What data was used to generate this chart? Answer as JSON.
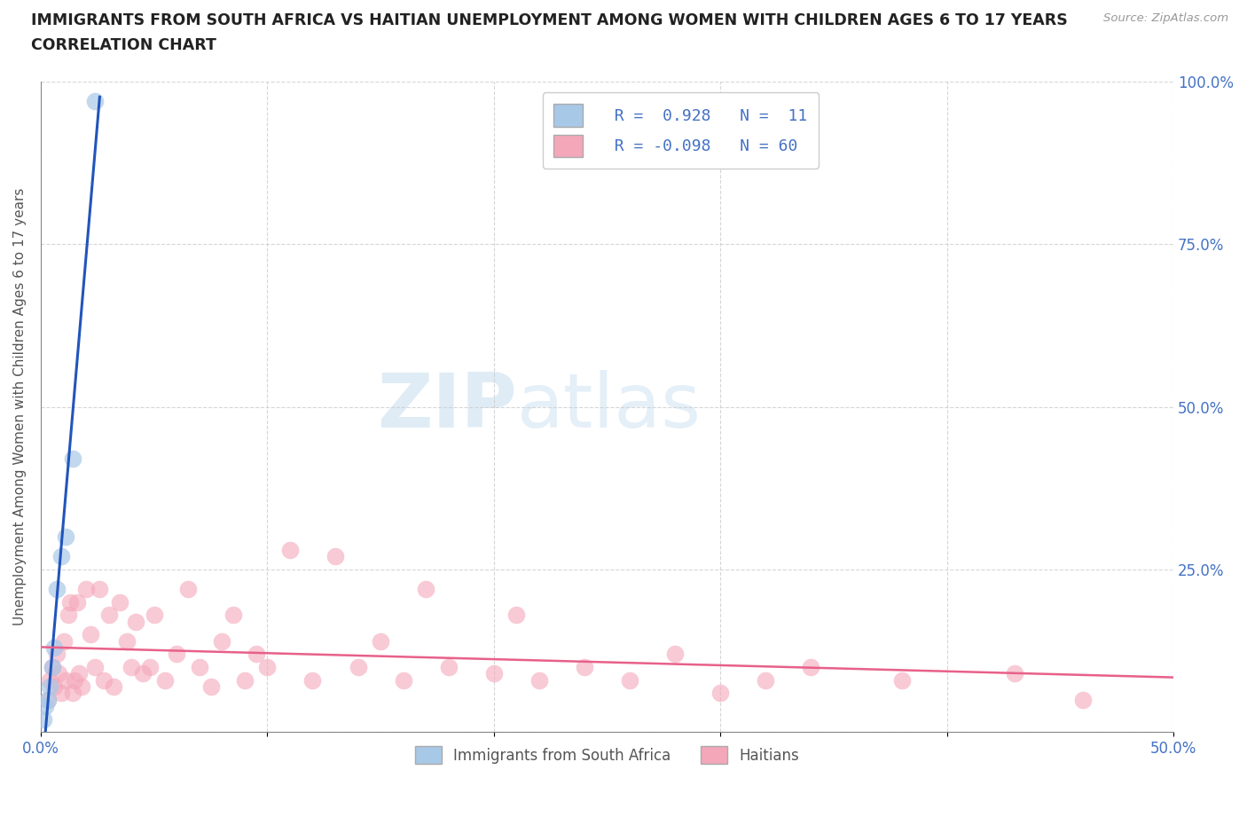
{
  "title": "IMMIGRANTS FROM SOUTH AFRICA VS HAITIAN UNEMPLOYMENT AMONG WOMEN WITH CHILDREN AGES 6 TO 17 YEARS",
  "subtitle": "CORRELATION CHART",
  "source": "Source: ZipAtlas.com",
  "ylabel": "Unemployment Among Women with Children Ages 6 to 17 years",
  "xlim": [
    0.0,
    0.5
  ],
  "ylim": [
    0.0,
    1.0
  ],
  "xticks": [
    0.0,
    0.1,
    0.2,
    0.3,
    0.4,
    0.5
  ],
  "xticklabels": [
    "0.0%",
    "",
    "",
    "",
    "",
    "50.0%"
  ],
  "yticks": [
    0.0,
    0.25,
    0.5,
    0.75,
    1.0
  ],
  "yticklabels_right": [
    "",
    "25.0%",
    "50.0%",
    "75.0%",
    "100.0%"
  ],
  "background_color": "#ffffff",
  "watermark_zip": "ZIP",
  "watermark_atlas": "atlas",
  "legend_line1": "R =  0.928   N =  11",
  "legend_line2": "R = -0.098   N = 60",
  "blue_scatter_color": "#a8c8e8",
  "pink_scatter_color": "#f4a7b9",
  "blue_line_color": "#2255bb",
  "pink_line_color": "#e8608a",
  "title_color": "#222222",
  "axis_label_color": "#555555",
  "tick_color": "#4472c4",
  "grid_color": "#cccccc",
  "south_africa_x": [
    0.001,
    0.002,
    0.003,
    0.004,
    0.005,
    0.006,
    0.007,
    0.009,
    0.011,
    0.014,
    0.024
  ],
  "south_africa_y": [
    0.02,
    0.04,
    0.05,
    0.07,
    0.1,
    0.13,
    0.22,
    0.27,
    0.3,
    0.42,
    0.97
  ],
  "haitian_x": [
    0.003,
    0.004,
    0.005,
    0.006,
    0.007,
    0.008,
    0.009,
    0.01,
    0.011,
    0.012,
    0.013,
    0.014,
    0.015,
    0.016,
    0.017,
    0.018,
    0.02,
    0.022,
    0.024,
    0.026,
    0.028,
    0.03,
    0.032,
    0.035,
    0.038,
    0.04,
    0.042,
    0.045,
    0.048,
    0.05,
    0.055,
    0.06,
    0.065,
    0.07,
    0.075,
    0.08,
    0.085,
    0.09,
    0.095,
    0.1,
    0.11,
    0.12,
    0.13,
    0.14,
    0.15,
    0.16,
    0.17,
    0.18,
    0.2,
    0.21,
    0.22,
    0.24,
    0.26,
    0.28,
    0.3,
    0.32,
    0.34,
    0.38,
    0.43,
    0.46
  ],
  "haitian_y": [
    0.05,
    0.08,
    0.1,
    0.07,
    0.12,
    0.09,
    0.06,
    0.14,
    0.08,
    0.18,
    0.2,
    0.06,
    0.08,
    0.2,
    0.09,
    0.07,
    0.22,
    0.15,
    0.1,
    0.22,
    0.08,
    0.18,
    0.07,
    0.2,
    0.14,
    0.1,
    0.17,
    0.09,
    0.1,
    0.18,
    0.08,
    0.12,
    0.22,
    0.1,
    0.07,
    0.14,
    0.18,
    0.08,
    0.12,
    0.1,
    0.28,
    0.08,
    0.27,
    0.1,
    0.14,
    0.08,
    0.22,
    0.1,
    0.09,
    0.18,
    0.08,
    0.1,
    0.08,
    0.12,
    0.06,
    0.08,
    0.1,
    0.08,
    0.09,
    0.05
  ]
}
